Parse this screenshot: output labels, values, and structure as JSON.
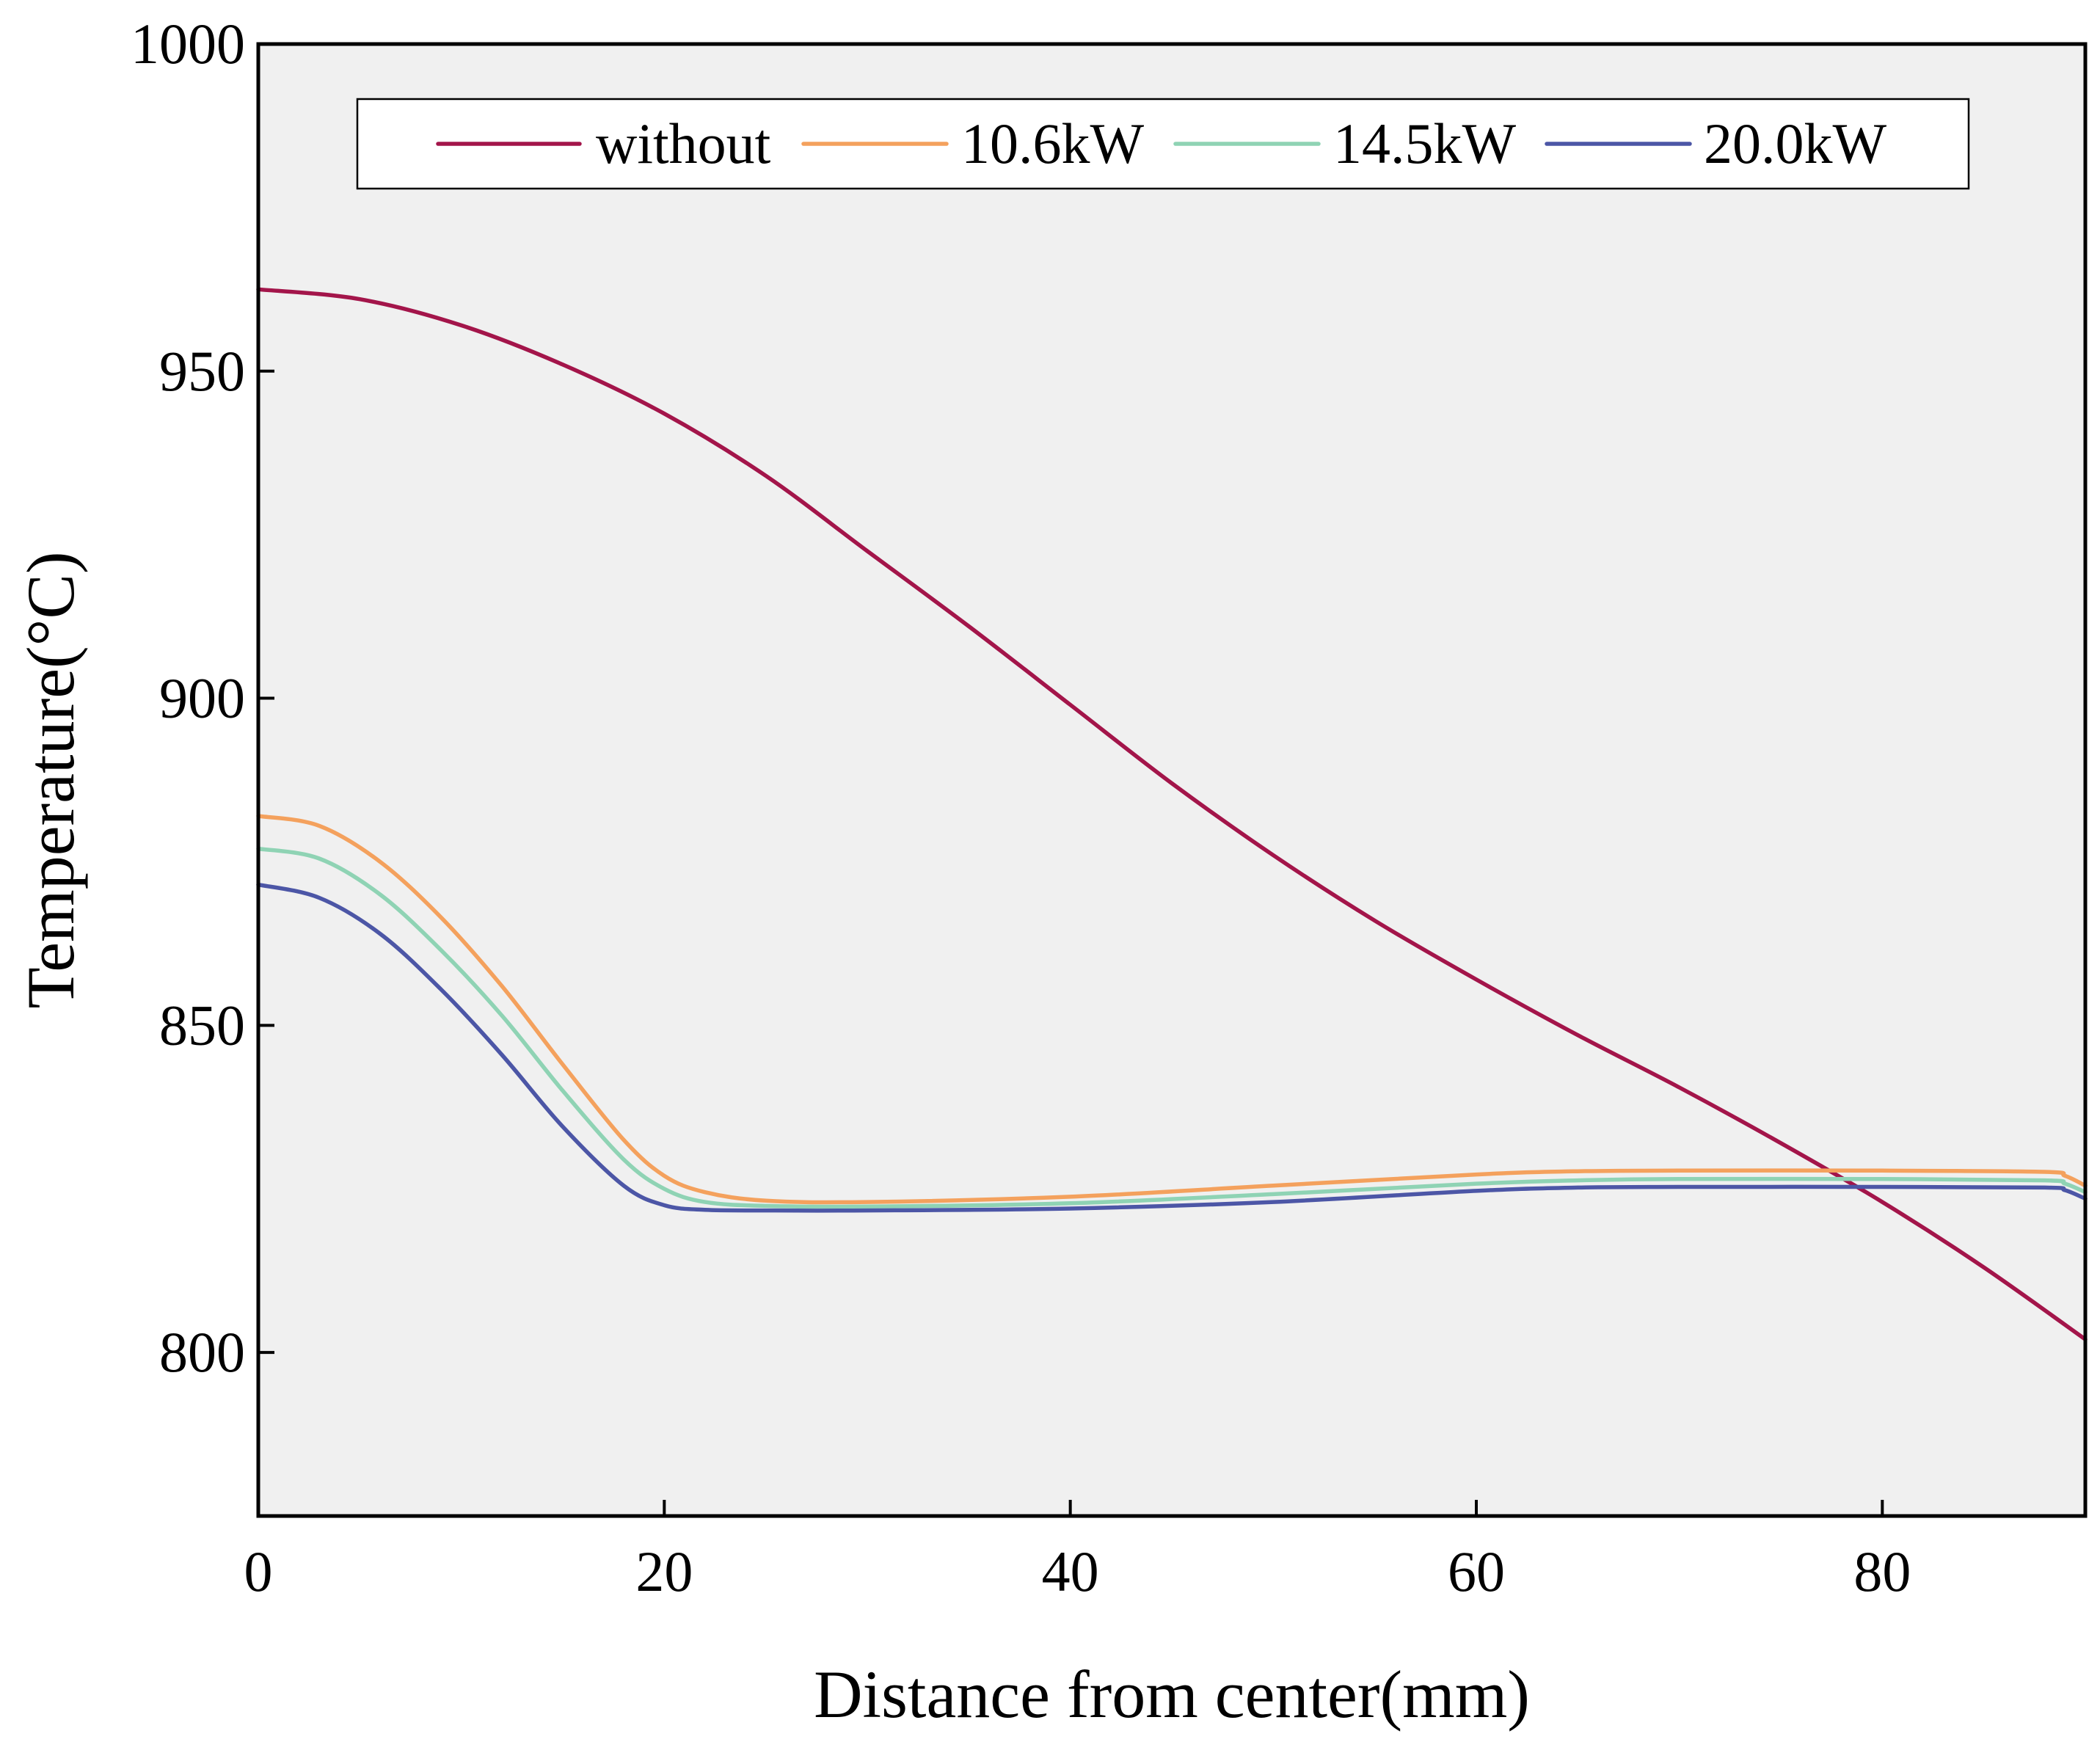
{
  "chart_data": {
    "type": "line",
    "title": "",
    "xlabel": "Distance from center(mm)",
    "ylabel": "Temperature(°C)",
    "xlim": [
      0,
      90
    ],
    "ylim": [
      775,
      1000
    ],
    "xticks": [
      0,
      20,
      40,
      60,
      80
    ],
    "yticks": [
      800,
      850,
      900,
      950,
      1000
    ],
    "legend_position": "top",
    "series": [
      {
        "name": "without",
        "color": "#a3154a",
        "x": [
          0,
          5,
          10,
          15,
          20,
          25,
          30,
          35,
          40,
          45,
          50,
          55,
          60,
          65,
          70,
          75,
          80,
          85,
          90
        ],
        "y": [
          962.5,
          961,
          957,
          951,
          943.5,
          934,
          922.5,
          911,
          899,
          887,
          876,
          866,
          857,
          848.5,
          840.5,
          832,
          823,
          813,
          802
        ]
      },
      {
        "name": "10.6kW",
        "color": "#f4a15d",
        "x": [
          0,
          3,
          6,
          9,
          12,
          15,
          18,
          20,
          22,
          25,
          30,
          40,
          50,
          60,
          65,
          70,
          80,
          88,
          89,
          90
        ],
        "y": [
          882,
          880.5,
          875,
          866.5,
          856,
          844,
          832.5,
          827,
          824.5,
          823.2,
          823,
          823.8,
          825.5,
          827.2,
          827.7,
          827.8,
          827.8,
          827.6,
          827,
          825.5
        ]
      },
      {
        "name": "14.5kW",
        "color": "#8fd3b4",
        "x": [
          0,
          3,
          6,
          9,
          12,
          15,
          18,
          20,
          22,
          25,
          30,
          40,
          50,
          60,
          65,
          70,
          80,
          88,
          89,
          90
        ],
        "y": [
          877,
          875.5,
          870,
          861.5,
          851.5,
          840,
          829.5,
          825,
          823,
          822.4,
          822.3,
          822.8,
          824.2,
          825.8,
          826.3,
          826.5,
          826.5,
          826.3,
          825.8,
          824.5
        ]
      },
      {
        "name": "20.0kW",
        "color": "#4c56a6",
        "x": [
          0,
          3,
          6,
          9,
          12,
          15,
          18,
          20,
          22,
          25,
          30,
          40,
          50,
          60,
          65,
          70,
          80,
          88,
          89,
          90
        ],
        "y": [
          871.5,
          869.5,
          864,
          855.5,
          845.5,
          834.5,
          825.5,
          822.5,
          821.8,
          821.7,
          821.7,
          822,
          823,
          824.7,
          825.2,
          825.3,
          825.3,
          825.2,
          824.8,
          823.5
        ]
      }
    ]
  }
}
